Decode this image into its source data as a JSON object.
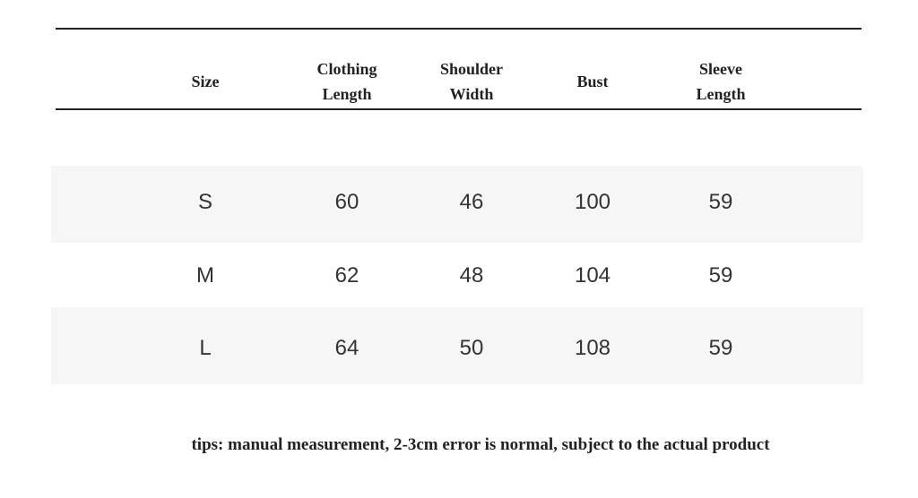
{
  "table": {
    "header": [
      "Size",
      "Clothing Length",
      "Shoulder Width",
      "Bust",
      "Sleeve Length"
    ],
    "rows": [
      [
        "S",
        60,
        46,
        100,
        59
      ],
      [
        "M",
        62,
        48,
        104,
        59
      ],
      [
        "L",
        64,
        50,
        108,
        59
      ]
    ]
  },
  "tips": "tips: manual measurement, 2-3cm error is normal, subject to the actual product"
}
